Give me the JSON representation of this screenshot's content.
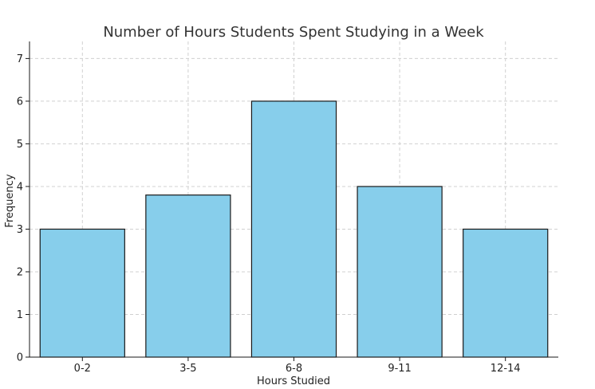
{
  "chart_data": {
    "type": "bar",
    "title": "Number of Hours Students Spent Studying in a Week",
    "xlabel": "Hours Studied",
    "ylabel": "Frequency",
    "categories": [
      "0-2",
      "3-5",
      "6-8",
      "9-11",
      "12-14"
    ],
    "values": [
      3,
      3.8,
      6,
      4,
      3
    ],
    "ylim": [
      0,
      7.4
    ],
    "yticks": [
      0,
      1,
      2,
      3,
      4,
      5,
      6,
      7
    ],
    "grid": true,
    "colors": {
      "bar_fill": "#87CEEB",
      "bar_edge": "#1a1a1a",
      "grid": "#d0d0d0"
    }
  }
}
